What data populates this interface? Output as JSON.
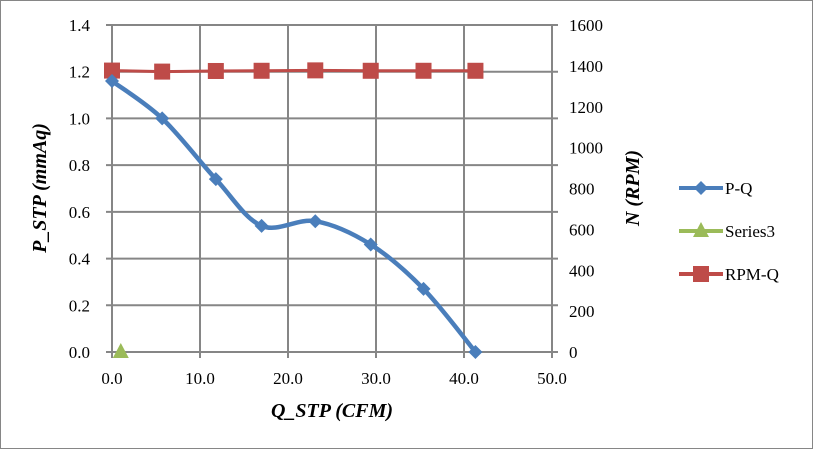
{
  "chart_data": {
    "type": "line",
    "xlabel": "Q_STP (CFM)",
    "ylabel": "P_STP (mmAq)",
    "y2label": "N (RPM)",
    "xlim": [
      0,
      50
    ],
    "ylim": [
      0,
      1.4
    ],
    "y2lim": [
      0,
      1600
    ],
    "xticks": [
      "0.0",
      "10.0",
      "20.0",
      "30.0",
      "40.0",
      "50.0"
    ],
    "yticks": [
      "0.0",
      "0.2",
      "0.4",
      "0.6",
      "0.8",
      "1.0",
      "1.2",
      "1.4"
    ],
    "y2ticks": [
      "0",
      "200",
      "400",
      "600",
      "800",
      "1000",
      "1200",
      "1400",
      "1600"
    ],
    "grid": true,
    "legend_position": "right",
    "series": [
      {
        "name": "P-Q",
        "axis": "left",
        "color": "#4A7EBB",
        "marker": "diamond",
        "smooth": true,
        "x": [
          0.0,
          5.7,
          11.8,
          17.0,
          23.1,
          29.4,
          35.4,
          41.3
        ],
        "y": [
          1.16,
          1.0,
          0.74,
          0.54,
          0.56,
          0.46,
          0.27,
          0.0
        ]
      },
      {
        "name": "Series3",
        "axis": "left",
        "color": "#9BBB59",
        "marker": "triangle",
        "smooth": false,
        "x": [
          1.0
        ],
        "y": [
          0.0
        ]
      },
      {
        "name": "RPM-Q",
        "axis": "right",
        "color": "#BE4B48",
        "marker": "square",
        "smooth": false,
        "x": [
          0.0,
          5.7,
          11.8,
          17.0,
          23.1,
          29.4,
          35.4,
          41.3
        ],
        "y": [
          1377,
          1372,
          1375,
          1376,
          1378,
          1376,
          1376,
          1376
        ]
      }
    ]
  }
}
